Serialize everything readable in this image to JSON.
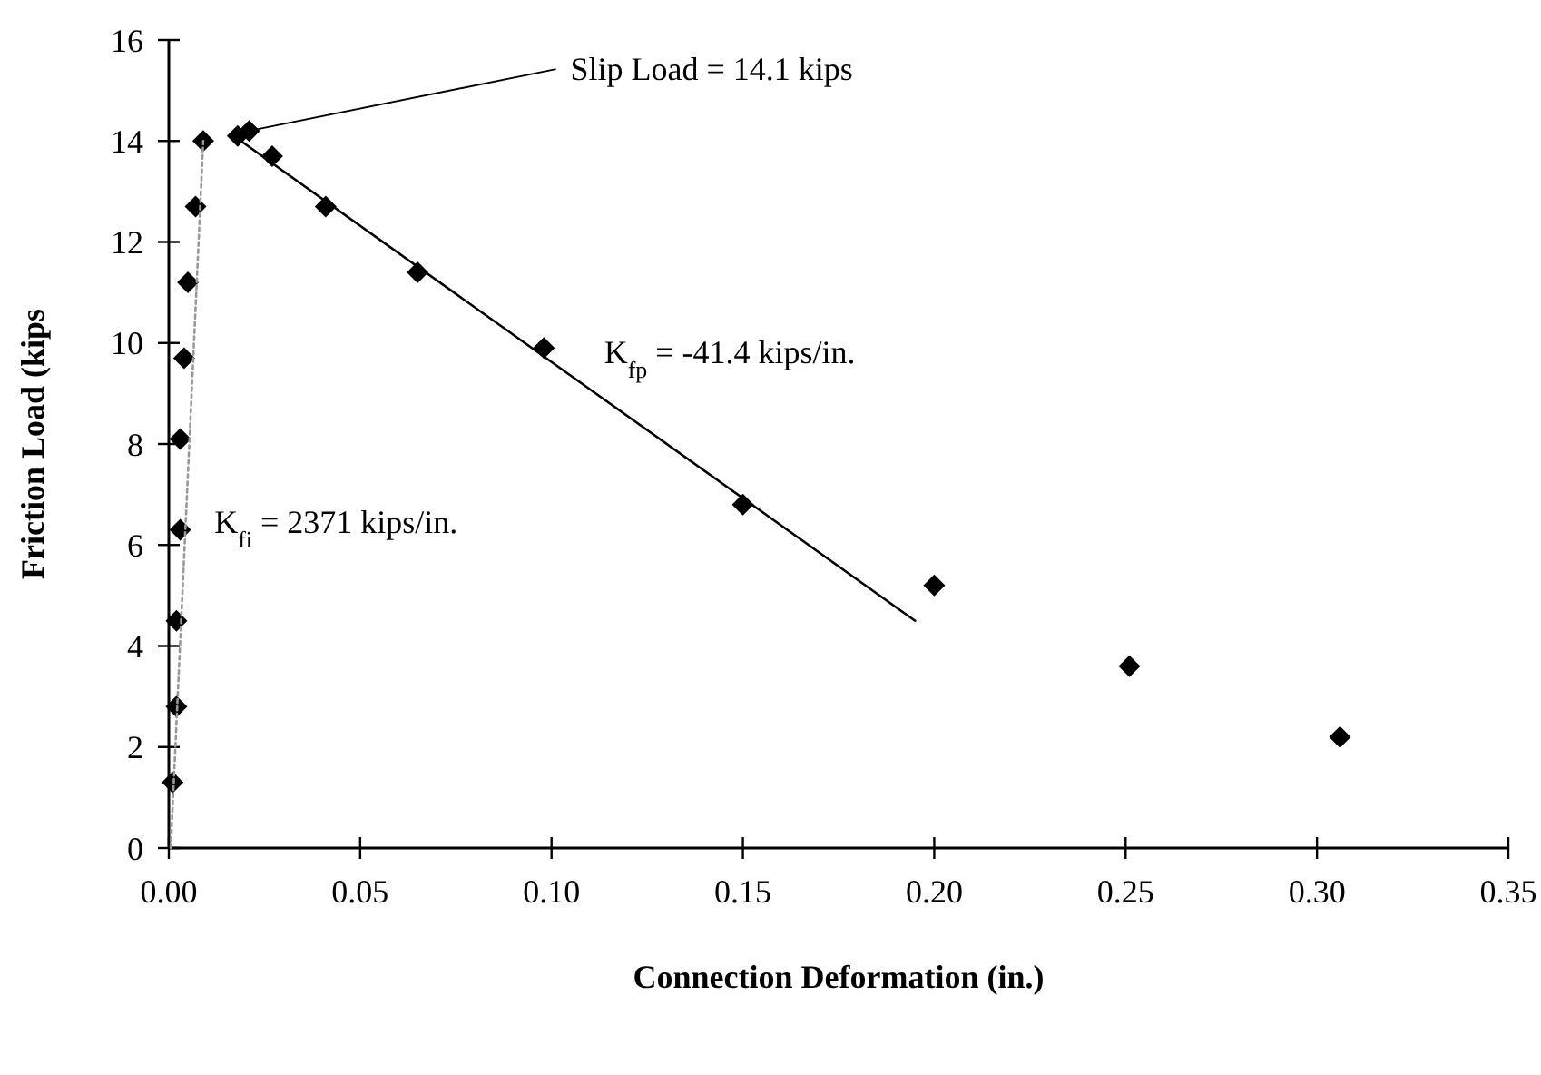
{
  "chart_data": {
    "type": "scatter",
    "xlabel": "Connection Deformation (in.)",
    "ylabel": "Friction Load (kips",
    "xlim": [
      0,
      0.35
    ],
    "ylim": [
      0,
      16
    ],
    "xticks": [
      {
        "value": 0,
        "label": "0.00"
      },
      {
        "value": 0.05,
        "label": "0.05"
      },
      {
        "value": 0.1,
        "label": "0.10"
      },
      {
        "value": 0.15,
        "label": "0.15"
      },
      {
        "value": 0.2,
        "label": "0.20"
      },
      {
        "value": 0.25,
        "label": "0.25"
      },
      {
        "value": 0.3,
        "label": "0.30"
      },
      {
        "value": 0.35,
        "label": "0.35"
      }
    ],
    "yticks": [
      0,
      2,
      4,
      6,
      8,
      10,
      12,
      14,
      16
    ],
    "grid": false,
    "series": [
      {
        "color": "#000000",
        "marker": "diamond",
        "x": [
          0.001,
          0.002,
          0.002,
          0.003,
          0.003,
          0.004,
          0.005,
          0.007,
          0.009,
          0.018,
          0.021,
          0.027,
          0.041,
          0.065,
          0.098,
          0.15,
          0.2,
          0.251,
          0.306
        ],
        "values": [
          1.3,
          2.8,
          4.5,
          6.3,
          8.1,
          9.7,
          11.2,
          12.7,
          14.0,
          14.1,
          14.2,
          13.7,
          12.7,
          11.4,
          9.9,
          6.8,
          5.2,
          3.6,
          2.2
        ]
      },
      {
        "type": "line",
        "color": "#999999",
        "line_style": "dotted",
        "x": [
          0.0005,
          0.009
        ],
        "values": [
          0,
          14.0
        ]
      },
      {
        "type": "line",
        "color": "#000000",
        "line_style": "solid",
        "marker": "none",
        "x": [
          0.017,
          0.195
        ],
        "values": [
          14.1,
          4.5
        ]
      }
    ],
    "annotations": [
      {
        "text": "Slip Load = 14.1 kips",
        "x": 0.021,
        "y": 14.2
      },
      "K$_{fp}$ = -41.4 kips/in.",
      "K$_{fi}$ = 2371 kips/in."
    ]
  }
}
